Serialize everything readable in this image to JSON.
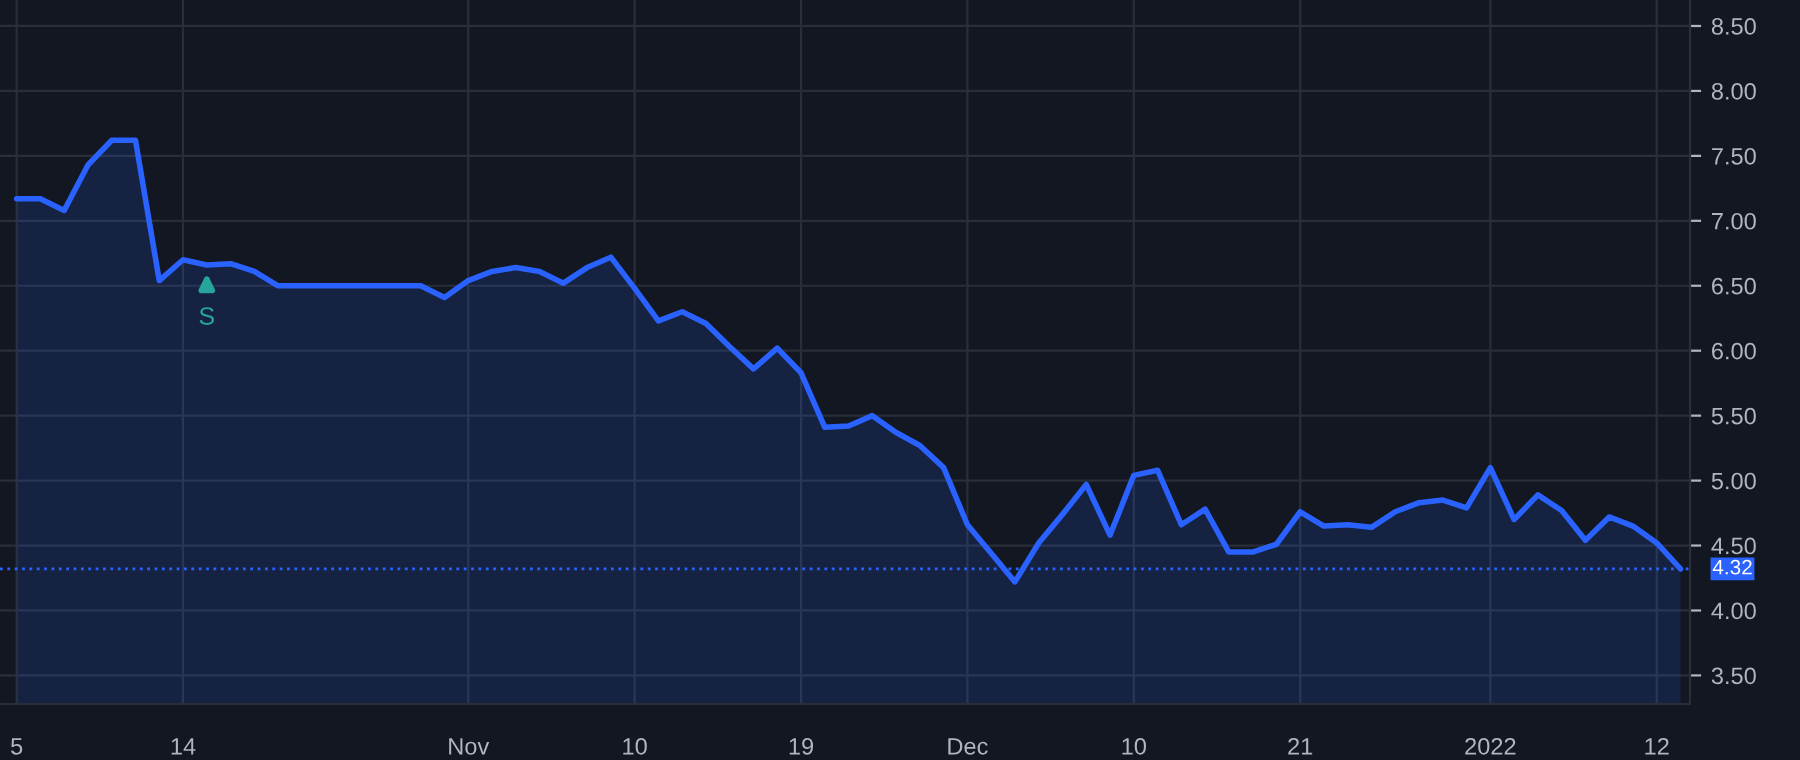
{
  "chart_data": {
    "type": "area",
    "categories": [
      "5",
      null,
      null,
      null,
      null,
      null,
      null,
      "14",
      null,
      null,
      null,
      null,
      null,
      null,
      null,
      null,
      null,
      null,
      null,
      "Nov",
      null,
      null,
      null,
      null,
      null,
      null,
      "10",
      null,
      null,
      null,
      null,
      null,
      null,
      "19",
      null,
      null,
      null,
      null,
      null,
      null,
      "Dec",
      null,
      null,
      null,
      null,
      null,
      null,
      "10",
      null,
      null,
      null,
      null,
      null,
      null,
      "21",
      null,
      null,
      null,
      null,
      null,
      null,
      null,
      "2022",
      null,
      null,
      null,
      null,
      null,
      null,
      "12",
      null
    ],
    "series": [
      {
        "color": "#2962ff",
        "values": [
          7.17,
          7.17,
          7.08,
          7.43,
          7.62,
          7.62,
          6.54,
          6.7,
          6.66,
          6.67,
          6.61,
          6.5,
          6.5,
          6.5,
          6.5,
          6.5,
          6.5,
          6.5,
          6.41,
          6.54,
          6.61,
          6.64,
          6.61,
          6.52,
          6.64,
          6.72,
          6.48,
          6.23,
          6.3,
          6.21,
          6.03,
          5.86,
          6.02,
          5.83,
          5.41,
          5.42,
          5.5,
          5.37,
          5.27,
          5.1,
          4.66,
          4.44,
          4.22,
          4.52,
          4.74,
          4.97,
          4.58,
          5.04,
          5.08,
          4.66,
          4.78,
          4.45,
          4.45,
          4.51,
          4.76,
          4.65,
          4.66,
          4.64,
          4.76,
          4.83,
          4.85,
          4.79,
          5.1,
          4.7,
          4.89,
          4.77,
          4.54,
          4.72,
          4.65,
          4.52,
          4.32
        ]
      }
    ],
    "ylim": [
      3.28,
      8.7
    ],
    "yticks": [
      {
        "value": 3.5,
        "label": "3.50"
      },
      {
        "value": 4,
        "label": "4.00"
      },
      {
        "value": 4.5,
        "label": "4.50"
      },
      {
        "value": 5,
        "label": "5.00"
      },
      {
        "value": 5.5,
        "label": "5.50"
      },
      {
        "value": 6,
        "label": "6.00"
      },
      {
        "value": 6.5,
        "label": "6.50"
      },
      {
        "value": 7,
        "label": "7.00"
      },
      {
        "value": 7.5,
        "label": "7.50"
      },
      {
        "value": 8,
        "label": "8.00"
      },
      {
        "value": 8.5,
        "label": "8.50"
      }
    ],
    "grid": true,
    "ref_lines": [
      {
        "axis": "y",
        "value": 4.32,
        "label": "4.32",
        "color": "#2962ff",
        "line_style": "dotted"
      }
    ],
    "annotations": [
      "S"
    ]
  }
}
